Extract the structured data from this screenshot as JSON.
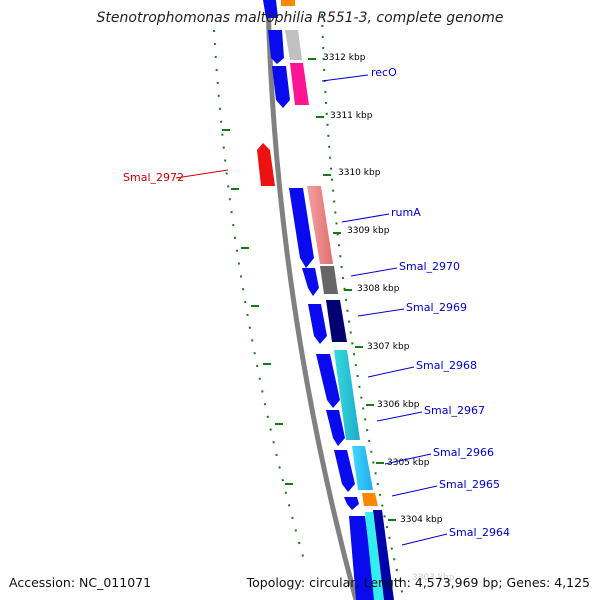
{
  "title": "Stenotrophomonas maltophilia R551-3, complete genome",
  "footer": {
    "accession": "Accession: NC_011071",
    "summary": "Topology: circular; Length: 4,573,969 bp; Genes: 4,125"
  },
  "colors": {
    "backbone": "#808080",
    "tick": "#1a7a1a",
    "forward_gene": "#0a0aee",
    "reverse_gene": "#ee1111",
    "label_blue": "#0000cc",
    "label_red": "#cc0000"
  },
  "scale": {
    "unit": "kbp",
    "ticks": [
      3312,
      3311,
      3310,
      3309,
      3308,
      3307,
      3306,
      3305,
      3304,
      3303
    ],
    "tick_labels": [
      "3312 kbp",
      "3311 kbp",
      "3310 kbp",
      "3309 kbp",
      "3308 kbp",
      "3307 kbp",
      "3306 kbp",
      "3305 kbp",
      "3304 kbp",
      "3303 kbp"
    ]
  },
  "genes": [
    {
      "name": "recO",
      "strand": "+",
      "color": "#0a0aee",
      "label_color": "#0000cc"
    },
    {
      "name": "Smal_2972",
      "strand": "-",
      "color": "#ee1111",
      "label_color": "#cc0000"
    },
    {
      "name": "rumA",
      "strand": "+",
      "color": "#0a0aee",
      "label_color": "#0000cc"
    },
    {
      "name": "Smal_2970",
      "strand": "+",
      "color": "#0a0aee",
      "label_color": "#0000cc"
    },
    {
      "name": "Smal_2969",
      "strand": "+",
      "color": "#0a0aee",
      "label_color": "#0000cc"
    },
    {
      "name": "Smal_2968",
      "strand": "+",
      "color": "#0a0aee",
      "label_color": "#0000cc"
    },
    {
      "name": "Smal_2967",
      "strand": "+",
      "color": "#0a0aee",
      "label_color": "#0000cc"
    },
    {
      "name": "Smal_2966",
      "strand": "+",
      "color": "#0a0aee",
      "label_color": "#0000cc"
    },
    {
      "name": "Smal_2965",
      "strand": "+",
      "color": "#0a0aee",
      "label_color": "#0000cc"
    },
    {
      "name": "Smal_2964",
      "strand": "+",
      "color": "#0a0aee",
      "label_color": "#0000cc"
    }
  ]
}
